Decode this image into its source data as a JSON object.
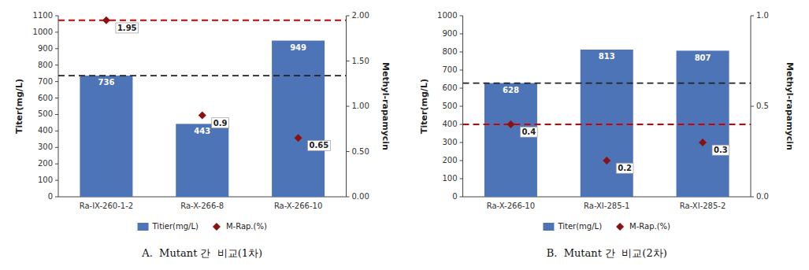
{
  "chart_data": [
    {
      "type": "bar",
      "subtitle": "A.  Mutant 간  비교(1차)",
      "categories": [
        "Ra-IX-260-1-2",
        "Ra-X-266-8",
        "Ra-X-266-10"
      ],
      "series": [
        {
          "name": "Titier(mg/L)",
          "type": "bar",
          "color": "#4E74B8",
          "values": [
            736,
            443,
            949
          ]
        },
        {
          "name": "M-Rap.(%)",
          "type": "scatter",
          "marker": "diamond",
          "color": "#8B1010",
          "axis": "y2",
          "values": [
            1.95,
            0.9,
            0.65
          ]
        }
      ],
      "ylabel": "Titer(mg/L)",
      "y2label": "Methyl-rapamycin",
      "ylim": [
        0,
        1100
      ],
      "yticks": [
        0,
        100,
        200,
        300,
        400,
        500,
        600,
        700,
        800,
        900,
        1000,
        1100
      ],
      "y2lim": [
        0,
        2
      ],
      "y2ticks": [
        {
          "value": 0,
          "label": "0.00"
        },
        {
          "value": 0.5,
          "label": "0.50"
        },
        {
          "value": 1,
          "label": "1.00"
        },
        {
          "value": 1.5,
          "label": "1.50"
        },
        {
          "value": 2,
          "label": "2.00"
        }
      ],
      "reference_lines": [
        {
          "value": 736,
          "axis": "y",
          "color": "#222222",
          "line_style": "dashed"
        },
        {
          "value": 1.95,
          "axis": "y2",
          "color": "#CC0000",
          "line_style": "dashed"
        }
      ],
      "data_labels": true,
      "legend": "bottom",
      "grid": false
    },
    {
      "type": "bar",
      "subtitle": "B.  Mutant 간  비교(2차)",
      "categories": [
        "Ra-X-266-10",
        "Ra-XI-285-1",
        "Ra-XI-285-2"
      ],
      "series": [
        {
          "name": "Titer(mg/L)",
          "type": "bar",
          "color": "#4E74B8",
          "values": [
            628,
            813,
            807
          ]
        },
        {
          "name": "M-Rap.(%)",
          "type": "scatter",
          "marker": "diamond",
          "color": "#8B1010",
          "axis": "y2",
          "values": [
            0.4,
            0.2,
            0.3
          ]
        }
      ],
      "ylabel": "Titer(mg/L)",
      "y2label": "Methyl-rapamycin",
      "ylim": [
        0,
        1000
      ],
      "yticks": [
        0,
        100,
        200,
        300,
        400,
        500,
        600,
        700,
        800,
        900,
        1000
      ],
      "y2lim": [
        0,
        1
      ],
      "y2ticks": [
        {
          "value": 0,
          "label": "0.0"
        },
        0.5,
        {
          "value": 1,
          "label": "1.0"
        }
      ],
      "reference_lines": [
        {
          "value": 628,
          "axis": "y",
          "color": "#222222",
          "line_style": "dashed"
        },
        {
          "value": 0.4,
          "axis": "y2",
          "color": "#CC0000",
          "line_style": "dashed"
        }
      ],
      "data_labels": true,
      "legend": "bottom",
      "grid": false
    }
  ]
}
